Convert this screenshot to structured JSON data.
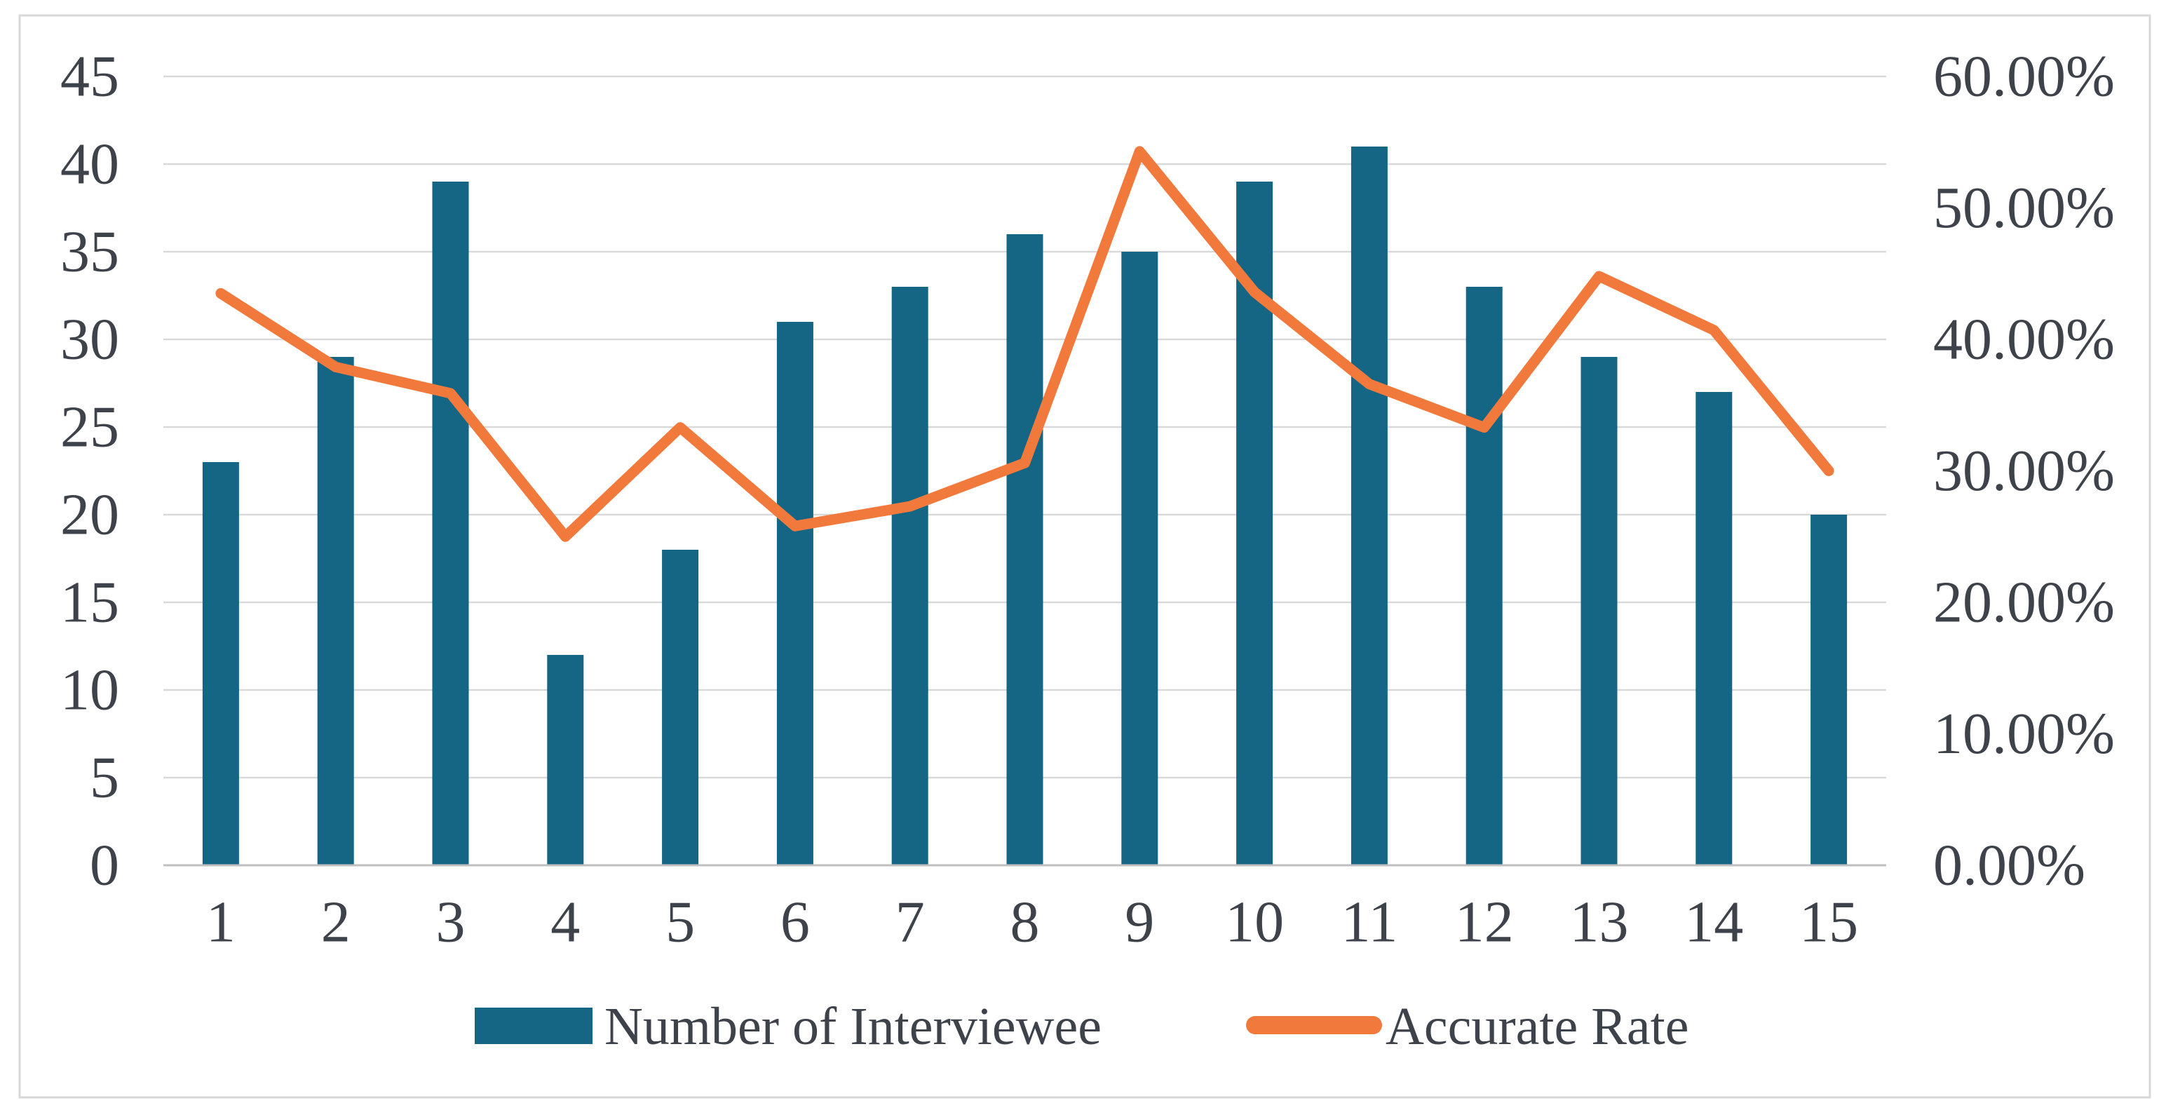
{
  "figure": {
    "background": "#FFFFFF",
    "border_color": "#D8D8D8",
    "text_color": "#3E434B"
  },
  "chart_data": {
    "type": "bar+line combo",
    "title": "",
    "categories": [
      "1",
      "2",
      "3",
      "4",
      "5",
      "6",
      "7",
      "8",
      "9",
      "10",
      "11",
      "12",
      "13",
      "14",
      "15"
    ],
    "series": [
      {
        "name": "Number of Interviewee",
        "type": "bar",
        "axis": "left",
        "color": "#146684",
        "values": [
          23,
          29,
          39,
          12,
          18,
          31,
          33,
          36,
          35,
          39,
          41,
          33,
          29,
          27,
          20
        ]
      },
      {
        "name": "Accurate Rate",
        "type": "line",
        "axis": "right",
        "color": "#F2793C",
        "values_percent": [
          43.5,
          37.9,
          35.9,
          25.0,
          33.3,
          25.8,
          27.3,
          30.6,
          54.3,
          43.6,
          36.6,
          33.3,
          44.8,
          40.7,
          30.0
        ]
      }
    ],
    "left_axis": {
      "min": 0,
      "max": 45,
      "step": 5,
      "ticks": [
        {
          "value": 0,
          "label": "0"
        },
        {
          "value": 5,
          "label": "5"
        },
        {
          "value": 10,
          "label": "10"
        },
        {
          "value": 15,
          "label": "15"
        },
        {
          "value": 20,
          "label": "20"
        },
        {
          "value": 25,
          "label": "25"
        },
        {
          "value": 30,
          "label": "30"
        },
        {
          "value": 35,
          "label": "35"
        },
        {
          "value": 40,
          "label": "40"
        },
        {
          "value": 45,
          "label": "45"
        }
      ]
    },
    "right_axis": {
      "min": 0,
      "max": 60,
      "step": 10,
      "ticks": [
        {
          "value": 0,
          "label": "0.00%"
        },
        {
          "value": 10,
          "label": "10.00%"
        },
        {
          "value": 20,
          "label": "20.00%"
        },
        {
          "value": 30,
          "label": "30.00%"
        },
        {
          "value": 40,
          "label": "40.00%"
        },
        {
          "value": 50,
          "label": "50.00%"
        },
        {
          "value": 60,
          "label": "60.00%"
        }
      ]
    },
    "grid": {
      "horizontal": true,
      "vertical": false,
      "color": "#D9D9D9",
      "axis_line_color": "#BFBFBF"
    },
    "legend_position": "bottom"
  },
  "legend": {
    "items": [
      {
        "label": "Number of Interviewee",
        "swatch": "rect",
        "color": "#146684"
      },
      {
        "label": "Accurate Rate",
        "swatch": "line",
        "color": "#F2793C"
      }
    ]
  }
}
